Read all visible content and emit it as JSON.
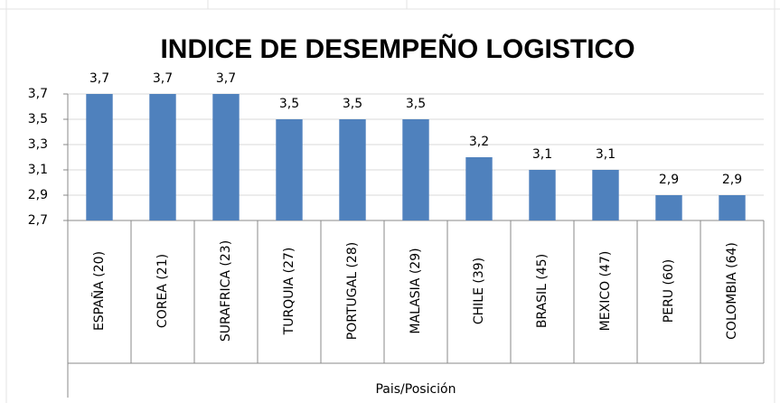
{
  "chart_data": {
    "type": "bar",
    "title": "INDICE DE DESEMPEÑO LOGISTICO",
    "categories": [
      "ESPAÑA (20)",
      "COREA (21)",
      "SURAFRICA (23)",
      "TURQUIA (27)",
      "PORTUGAL (28)",
      "MALASIA (29)",
      "CHILE (39)",
      "BRASIL (45)",
      "MEXICO (47)",
      "PERU (60)",
      "COLOMBIA (64)"
    ],
    "values": [
      3.7,
      3.7,
      3.7,
      3.5,
      3.5,
      3.5,
      3.2,
      3.1,
      3.1,
      2.9,
      2.9
    ],
    "value_labels": [
      "3,7",
      "3,7",
      "3,7",
      "3,5",
      "3,5",
      "3,5",
      "3,2",
      "3,1",
      "3,1",
      "2,9",
      "2,9"
    ],
    "color": "#4f81bd",
    "xlabel": "Pais/Posición",
    "ylim": [
      2.7,
      3.7
    ],
    "yticks": [
      {
        "value": 2.7,
        "label": "2,7"
      },
      {
        "value": 2.9,
        "label": "2,9"
      },
      {
        "value": 3.1,
        "label": "3,1"
      },
      {
        "value": 3.3,
        "label": "3,3"
      },
      {
        "value": 3.5,
        "label": "3,5"
      },
      {
        "value": 3.7,
        "label": "3,7"
      }
    ],
    "grid": true
  }
}
